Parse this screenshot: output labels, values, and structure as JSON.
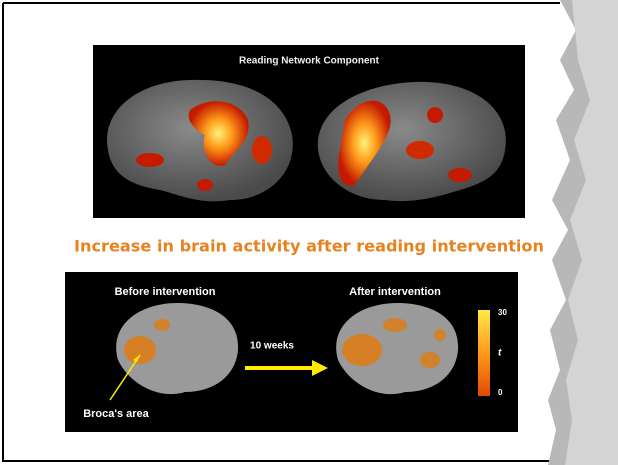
{
  "slide": {
    "top_figure": {
      "title": "Reading Network Component"
    },
    "heading": "Increase in brain activity after reading intervention",
    "bottom_figure": {
      "before_label": "Before intervention",
      "after_label": "After intervention",
      "arrow_label": "10 weeks",
      "annotation": "Broca's area",
      "colorbar": {
        "max": "30",
        "symbol": "t",
        "min": "0"
      }
    }
  }
}
